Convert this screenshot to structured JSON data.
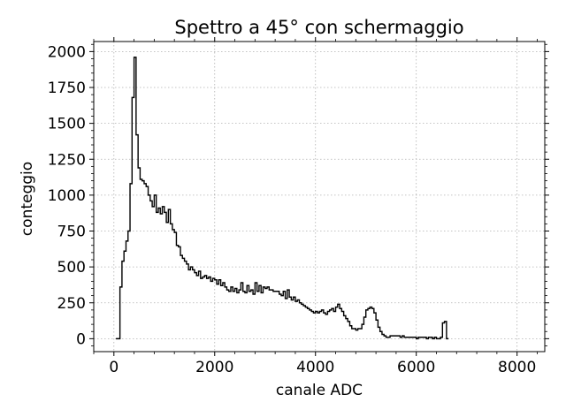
{
  "chart_data": {
    "type": "step-histogram",
    "title": "Spettro a 45° con schermaggio",
    "xlabel": "canale ADC",
    "ylabel": "conteggio",
    "xlim": [
      -400,
      8550
    ],
    "ylim": [
      -90,
      2070
    ],
    "x_ticks": [
      0,
      2000,
      4000,
      6000,
      8000
    ],
    "y_ticks": [
      0,
      250,
      500,
      750,
      1000,
      1250,
      1500,
      1750,
      2000
    ],
    "grid": true,
    "grid_style": "dotted",
    "line_color": "#000000",
    "bin_width": 40,
    "bins_start": 40,
    "counts": [
      0,
      0,
      360,
      540,
      610,
      680,
      750,
      1080,
      1680,
      1960,
      1420,
      1190,
      1110,
      1100,
      1080,
      1060,
      1000,
      960,
      920,
      1000,
      880,
      910,
      870,
      920,
      880,
      810,
      900,
      800,
      760,
      740,
      650,
      640,
      580,
      560,
      540,
      520,
      480,
      500,
      480,
      460,
      440,
      470,
      420,
      430,
      440,
      420,
      430,
      400,
      420,
      410,
      380,
      410,
      370,
      390,
      360,
      340,
      330,
      360,
      330,
      350,
      320,
      340,
      390,
      330,
      320,
      370,
      330,
      340,
      310,
      390,
      330,
      370,
      320,
      360,
      350,
      360,
      340,
      340,
      330,
      330,
      330,
      310,
      300,
      330,
      280,
      340,
      290,
      270,
      290,
      260,
      270,
      250,
      240,
      230,
      220,
      210,
      200,
      190,
      180,
      190,
      180,
      190,
      200,
      180,
      170,
      190,
      200,
      210,
      190,
      220,
      240,
      210,
      190,
      160,
      140,
      120,
      90,
      70,
      70,
      60,
      70,
      70,
      100,
      150,
      200,
      210,
      220,
      210,
      180,
      130,
      80,
      50,
      30,
      20,
      10,
      10,
      20,
      20,
      20,
      20,
      20,
      10,
      20,
      10,
      10,
      10,
      10,
      10,
      10,
      0,
      10,
      10,
      10,
      10,
      0,
      10,
      10,
      0,
      10,
      0,
      0,
      10,
      110,
      120,
      0
    ]
  }
}
